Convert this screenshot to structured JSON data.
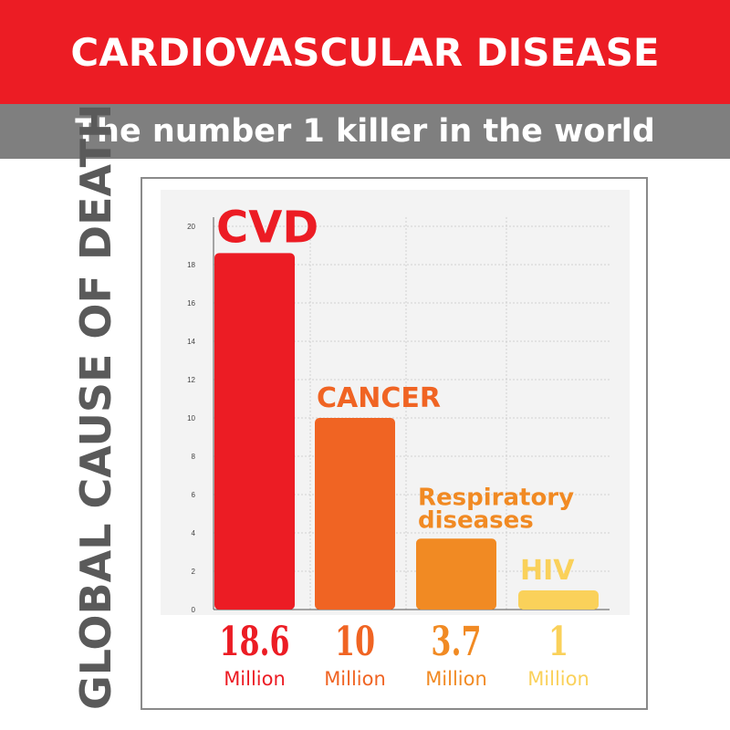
{
  "header": {
    "title": "CARDIOVASCULAR DISEASE",
    "subtitle": "The number 1 killer in the world"
  },
  "side_title": "GLOBAL CAUSE OF DEATH",
  "chart_data": {
    "type": "bar",
    "categories": [
      "CVD",
      "CANCER",
      "Respiratory diseases",
      "HIV"
    ],
    "category_lines": [
      [
        "CVD"
      ],
      [
        "CANCER"
      ],
      [
        "Respiratory",
        "diseases"
      ],
      [
        "HIV"
      ]
    ],
    "values": [
      18.6,
      10,
      3.7,
      1
    ],
    "value_labels": [
      "18.6",
      "10",
      "3.7",
      "1"
    ],
    "unit_label": "Million",
    "colors": [
      "#ec1c24",
      "#f06423",
      "#f18a23",
      "#fad15a"
    ],
    "yticks": [
      0,
      2,
      4,
      6,
      8,
      10,
      12,
      14,
      16,
      18,
      20
    ],
    "ylim": [
      0,
      21
    ],
    "grid": true
  }
}
